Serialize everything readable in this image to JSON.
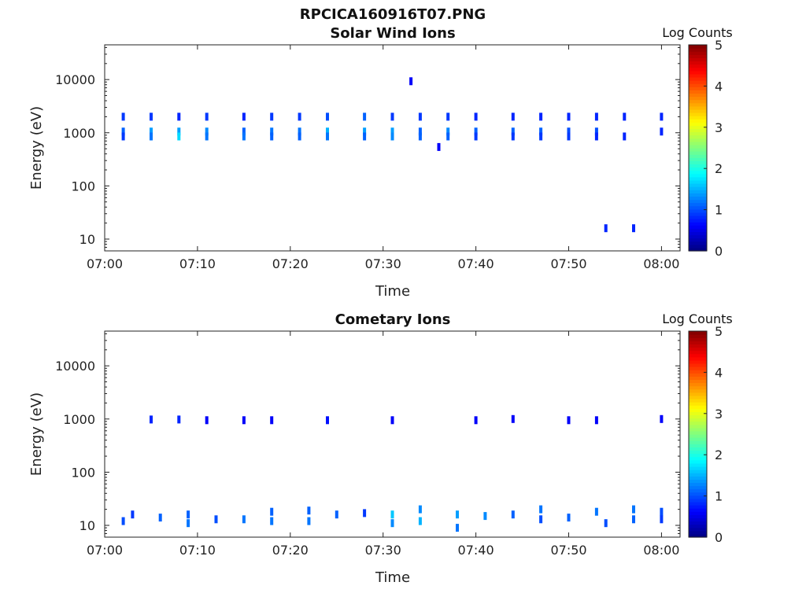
{
  "figure": {
    "title": "RPCICA160916T07.PNG"
  },
  "chart_data": [
    {
      "type": "heatmap",
      "title": "Solar Wind Ions",
      "xlabel": "Time",
      "ylabel": "Energy (eV)",
      "xlim": [
        "07:00",
        "08:02"
      ],
      "ylim": [
        6,
        45000
      ],
      "y_scale": "log",
      "x_ticks": [
        "07:00",
        "07:10",
        "07:20",
        "07:30",
        "07:40",
        "07:50",
        "08:00"
      ],
      "y_ticks": [
        "10",
        "100",
        "1000",
        "10000"
      ],
      "colorbar": {
        "label": "Log Counts",
        "range": [
          0,
          5
        ],
        "ticks": [
          "0",
          "1",
          "2",
          "3",
          "4",
          "5"
        ],
        "colormap": "jet"
      },
      "cells": [
        {
          "t": "07:02",
          "e": 2000,
          "v": 0.9
        },
        {
          "t": "07:02",
          "e": 1050,
          "v": 1.1
        },
        {
          "t": "07:02",
          "e": 850,
          "v": 0.9
        },
        {
          "t": "07:05",
          "e": 2000,
          "v": 0.9
        },
        {
          "t": "07:05",
          "e": 1050,
          "v": 1.4
        },
        {
          "t": "07:05",
          "e": 850,
          "v": 1.2
        },
        {
          "t": "07:08",
          "e": 2000,
          "v": 0.8
        },
        {
          "t": "07:08",
          "e": 1050,
          "v": 1.4
        },
        {
          "t": "07:08",
          "e": 850,
          "v": 1.7
        },
        {
          "t": "07:11",
          "e": 2000,
          "v": 0.9
        },
        {
          "t": "07:11",
          "e": 1050,
          "v": 1.3
        },
        {
          "t": "07:11",
          "e": 850,
          "v": 1.2
        },
        {
          "t": "07:15",
          "e": 2000,
          "v": 0.8
        },
        {
          "t": "07:15",
          "e": 1050,
          "v": 1.1
        },
        {
          "t": "07:15",
          "e": 850,
          "v": 1.2
        },
        {
          "t": "07:18",
          "e": 2000,
          "v": 0.9
        },
        {
          "t": "07:18",
          "e": 1050,
          "v": 1.2
        },
        {
          "t": "07:18",
          "e": 850,
          "v": 1.1
        },
        {
          "t": "07:21",
          "e": 2000,
          "v": 0.9
        },
        {
          "t": "07:21",
          "e": 1050,
          "v": 1.2
        },
        {
          "t": "07:21",
          "e": 850,
          "v": 1.1
        },
        {
          "t": "07:24",
          "e": 2000,
          "v": 1.0
        },
        {
          "t": "07:24",
          "e": 1050,
          "v": 1.5
        },
        {
          "t": "07:24",
          "e": 850,
          "v": 1.2
        },
        {
          "t": "07:28",
          "e": 2000,
          "v": 1.1
        },
        {
          "t": "07:28",
          "e": 1050,
          "v": 1.4
        },
        {
          "t": "07:28",
          "e": 850,
          "v": 1.1
        },
        {
          "t": "07:31",
          "e": 2000,
          "v": 0.9
        },
        {
          "t": "07:31",
          "e": 1050,
          "v": 1.4
        },
        {
          "t": "07:31",
          "e": 850,
          "v": 1.3
        },
        {
          "t": "07:34",
          "e": 2000,
          "v": 0.9
        },
        {
          "t": "07:34",
          "e": 1050,
          "v": 1.1
        },
        {
          "t": "07:34",
          "e": 850,
          "v": 1.1
        },
        {
          "t": "07:37",
          "e": 2000,
          "v": 0.9
        },
        {
          "t": "07:37",
          "e": 1050,
          "v": 1.3
        },
        {
          "t": "07:37",
          "e": 850,
          "v": 1.1
        },
        {
          "t": "07:40",
          "e": 2000,
          "v": 0.8
        },
        {
          "t": "07:40",
          "e": 1050,
          "v": 1.1
        },
        {
          "t": "07:40",
          "e": 850,
          "v": 0.9
        },
        {
          "t": "07:44",
          "e": 2000,
          "v": 0.8
        },
        {
          "t": "07:44",
          "e": 1050,
          "v": 1.1
        },
        {
          "t": "07:44",
          "e": 850,
          "v": 0.9
        },
        {
          "t": "07:47",
          "e": 2000,
          "v": 0.8
        },
        {
          "t": "07:47",
          "e": 1050,
          "v": 1.1
        },
        {
          "t": "07:47",
          "e": 850,
          "v": 0.9
        },
        {
          "t": "07:50",
          "e": 2000,
          "v": 0.8
        },
        {
          "t": "07:50",
          "e": 1050,
          "v": 1.0
        },
        {
          "t": "07:50",
          "e": 850,
          "v": 0.9
        },
        {
          "t": "07:53",
          "e": 2000,
          "v": 0.8
        },
        {
          "t": "07:53",
          "e": 1050,
          "v": 1.0
        },
        {
          "t": "07:53",
          "e": 850,
          "v": 0.8
        },
        {
          "t": "07:56",
          "e": 2000,
          "v": 0.8
        },
        {
          "t": "07:56",
          "e": 850,
          "v": 0.8
        },
        {
          "t": "08:00",
          "e": 2000,
          "v": 0.8
        },
        {
          "t": "08:00",
          "e": 1050,
          "v": 0.8
        },
        {
          "t": "07:33",
          "e": 9300,
          "v": 0.6
        },
        {
          "t": "07:36",
          "e": 540,
          "v": 0.6
        },
        {
          "t": "07:54",
          "e": 16,
          "v": 0.8
        },
        {
          "t": "07:57",
          "e": 16,
          "v": 0.8
        }
      ]
    },
    {
      "type": "heatmap",
      "title": "Cometary Ions",
      "xlabel": "Time",
      "ylabel": "Energy (eV)",
      "xlim": [
        "07:00",
        "08:02"
      ],
      "ylim": [
        6,
        45000
      ],
      "y_scale": "log",
      "x_ticks": [
        "07:00",
        "07:10",
        "07:20",
        "07:30",
        "07:40",
        "07:50",
        "08:00"
      ],
      "y_ticks": [
        "10",
        "100",
        "1000",
        "10000"
      ],
      "colorbar": {
        "label": "Log Counts",
        "range": [
          0,
          5
        ],
        "ticks": [
          "0",
          "1",
          "2",
          "3",
          "4",
          "5"
        ],
        "colormap": "jet"
      },
      "cells": [
        {
          "t": "07:05",
          "e": 980,
          "v": 0.8
        },
        {
          "t": "07:08",
          "e": 980,
          "v": 0.8
        },
        {
          "t": "07:11",
          "e": 950,
          "v": 0.6
        },
        {
          "t": "07:15",
          "e": 950,
          "v": 0.6
        },
        {
          "t": "07:18",
          "e": 950,
          "v": 0.6
        },
        {
          "t": "07:24",
          "e": 950,
          "v": 0.7
        },
        {
          "t": "07:31",
          "e": 950,
          "v": 0.6
        },
        {
          "t": "07:40",
          "e": 950,
          "v": 0.6
        },
        {
          "t": "07:44",
          "e": 1000,
          "v": 0.6
        },
        {
          "t": "07:50",
          "e": 950,
          "v": 0.6
        },
        {
          "t": "07:53",
          "e": 950,
          "v": 0.6
        },
        {
          "t": "08:00",
          "e": 1000,
          "v": 0.6
        },
        {
          "t": "07:02",
          "e": 12,
          "v": 1.0
        },
        {
          "t": "07:03",
          "e": 16,
          "v": 0.9
        },
        {
          "t": "07:06",
          "e": 14,
          "v": 1.1
        },
        {
          "t": "07:09",
          "e": 11,
          "v": 1.2
        },
        {
          "t": "07:09",
          "e": 16,
          "v": 1.1
        },
        {
          "t": "07:12",
          "e": 13,
          "v": 1.0
        },
        {
          "t": "07:15",
          "e": 13,
          "v": 1.2
        },
        {
          "t": "07:18",
          "e": 12,
          "v": 1.2
        },
        {
          "t": "07:18",
          "e": 18,
          "v": 1.1
        },
        {
          "t": "07:22",
          "e": 12,
          "v": 1.2
        },
        {
          "t": "07:22",
          "e": 19,
          "v": 1.1
        },
        {
          "t": "07:25",
          "e": 16,
          "v": 1.1
        },
        {
          "t": "07:28",
          "e": 17,
          "v": 0.9
        },
        {
          "t": "07:31",
          "e": 16,
          "v": 1.6
        },
        {
          "t": "07:31",
          "e": 11,
          "v": 1.3
        },
        {
          "t": "07:34",
          "e": 20,
          "v": 1.3
        },
        {
          "t": "07:34",
          "e": 12,
          "v": 1.5
        },
        {
          "t": "07:38",
          "e": 16,
          "v": 1.4
        },
        {
          "t": "07:38",
          "e": 9,
          "v": 1.2
        },
        {
          "t": "07:41",
          "e": 15,
          "v": 1.3
        },
        {
          "t": "07:44",
          "e": 16,
          "v": 1.1
        },
        {
          "t": "07:47",
          "e": 20,
          "v": 1.2
        },
        {
          "t": "07:47",
          "e": 13,
          "v": 1.0
        },
        {
          "t": "07:50",
          "e": 14,
          "v": 1.1
        },
        {
          "t": "07:53",
          "e": 18,
          "v": 1.2
        },
        {
          "t": "07:54",
          "e": 11,
          "v": 1.0
        },
        {
          "t": "07:57",
          "e": 20,
          "v": 1.2
        },
        {
          "t": "07:57",
          "e": 13,
          "v": 1.1
        },
        {
          "t": "08:00",
          "e": 18,
          "v": 1.0
        },
        {
          "t": "08:00",
          "e": 13,
          "v": 0.9
        }
      ]
    }
  ]
}
